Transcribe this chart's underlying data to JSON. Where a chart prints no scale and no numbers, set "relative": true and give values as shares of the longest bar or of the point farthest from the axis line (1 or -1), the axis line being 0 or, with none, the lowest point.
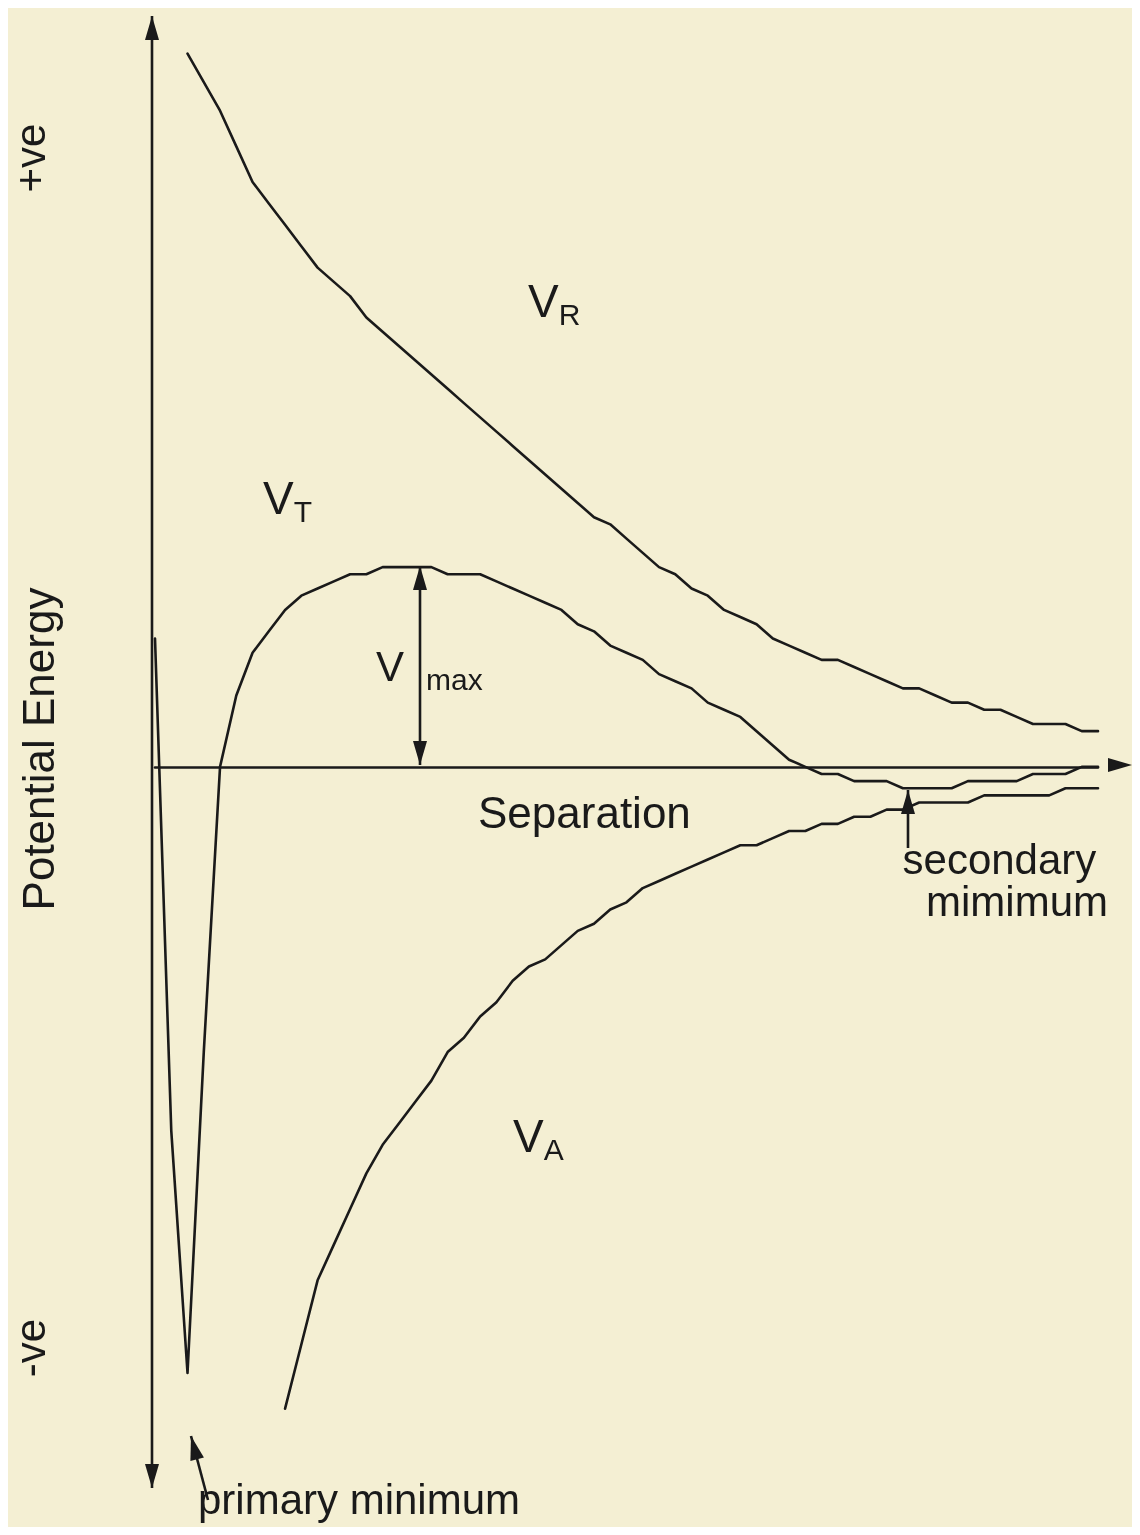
{
  "chart_data": {
    "type": "line",
    "relative": true,
    "xlabel": "Separation",
    "ylabel": "Potential Energy",
    "legend": false,
    "marker": "none",
    "line_style": "solid",
    "grid": false,
    "categories": [
      null,
      null,
      null,
      null,
      null,
      null,
      null,
      null,
      null,
      null,
      null,
      null,
      null,
      null,
      null,
      null,
      null,
      null,
      null,
      null,
      null,
      null,
      null,
      null,
      null,
      null,
      null,
      null,
      null,
      null,
      null,
      null,
      null,
      null,
      null,
      null,
      null,
      null,
      null,
      null,
      null,
      null,
      null,
      null,
      null,
      null,
      null,
      null,
      null,
      null,
      null,
      null,
      null,
      null,
      null,
      null,
      null,
      null,
      null
    ],
    "series": [
      {
        "name": "V$_{R}$",
        "color": "#1a1a1a",
        "values": [
          null,
          null,
          1.0,
          0.96,
          0.92,
          0.87,
          0.82,
          0.79,
          0.76,
          0.73,
          0.7,
          0.68,
          0.66,
          0.63,
          0.61,
          0.59,
          0.57,
          0.55,
          0.53,
          0.51,
          0.49,
          0.47,
          0.45,
          0.43,
          0.41,
          0.39,
          0.37,
          0.35,
          0.34,
          0.32,
          0.3,
          0.28,
          0.27,
          0.25,
          0.24,
          0.22,
          0.21,
          0.2,
          0.18,
          0.17,
          0.16,
          0.15,
          0.15,
          0.14,
          0.13,
          0.12,
          0.11,
          0.11,
          0.1,
          0.09,
          0.09,
          0.08,
          0.08,
          0.07,
          0.06,
          0.06,
          0.06,
          0.05,
          0.05
        ]
      },
      {
        "name": "V$_{T}$",
        "color": "#1a1a1a",
        "values": [
          0.18,
          -0.51,
          -0.85,
          -0.4,
          0.0,
          0.1,
          0.16,
          0.19,
          0.22,
          0.24,
          0.25,
          0.26,
          0.27,
          0.27,
          0.28,
          0.28,
          0.28,
          0.28,
          0.27,
          0.27,
          0.27,
          0.26,
          0.25,
          0.24,
          0.23,
          0.22,
          0.2,
          0.19,
          0.17,
          0.16,
          0.15,
          0.13,
          0.12,
          0.11,
          0.09,
          0.08,
          0.07,
          0.05,
          0.03,
          0.01,
          0.0,
          -0.01,
          -0.01,
          -0.02,
          -0.02,
          -0.02,
          -0.03,
          -0.03,
          -0.03,
          -0.03,
          -0.02,
          -0.02,
          -0.02,
          -0.02,
          -0.01,
          -0.01,
          -0.01,
          0.0,
          0.0
        ]
      },
      {
        "name": "V$_{A}$",
        "color": "#1a1a1a",
        "values": [
          null,
          null,
          null,
          null,
          null,
          null,
          null,
          null,
          -0.9,
          -0.81,
          -0.72,
          -0.67,
          -0.62,
          -0.57,
          -0.53,
          -0.5,
          -0.47,
          -0.44,
          -0.4,
          -0.38,
          -0.35,
          -0.33,
          -0.3,
          -0.28,
          -0.27,
          -0.25,
          -0.23,
          -0.22,
          -0.2,
          -0.19,
          -0.17,
          -0.16,
          -0.15,
          -0.14,
          -0.13,
          -0.12,
          -0.11,
          -0.11,
          -0.1,
          -0.09,
          -0.09,
          -0.08,
          -0.08,
          -0.07,
          -0.07,
          -0.06,
          -0.06,
          -0.05,
          -0.05,
          -0.05,
          -0.05,
          -0.04,
          -0.04,
          -0.04,
          -0.04,
          -0.04,
          -0.03,
          -0.03,
          -0.03
        ]
      }
    ],
    "annotations": [
      "+ve",
      "-ve",
      "V$_{max}$",
      "secondary mimimum",
      "primary minimum"
    ]
  }
}
